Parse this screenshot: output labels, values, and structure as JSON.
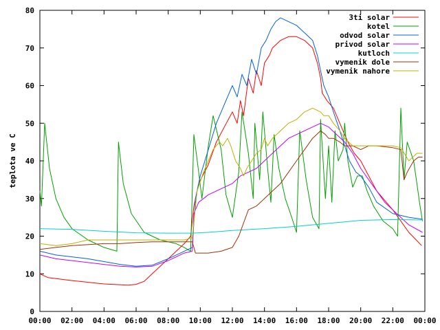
{
  "chart_data": {
    "type": "line",
    "title": "",
    "xlabel": "",
    "ylabel": "teplota ve C",
    "xlim": [
      0,
      24
    ],
    "ylim": [
      0,
      80
    ],
    "x_ticks": [
      "00:00",
      "02:00",
      "04:00",
      "06:00",
      "08:00",
      "10:00",
      "12:00",
      "14:00",
      "16:00",
      "18:00",
      "20:00",
      "22:00",
      "00:00"
    ],
    "y_ticks": [
      "0",
      "10",
      "20",
      "30",
      "40",
      "50",
      "60",
      "70",
      "80"
    ],
    "y_tick_values": [
      0,
      10,
      20,
      30,
      40,
      50,
      60,
      70,
      80
    ],
    "grid": false,
    "legend_position": "top-right",
    "series": [
      {
        "name": "3ti solar",
        "color": "#ff0000",
        "points": [
          [
            0,
            10
          ],
          [
            0.5,
            9
          ],
          [
            2,
            8.2
          ],
          [
            4,
            7.3
          ],
          [
            5.5,
            7
          ],
          [
            6,
            7.2
          ],
          [
            6.5,
            8
          ],
          [
            7,
            10
          ],
          [
            8,
            14
          ],
          [
            9,
            18
          ],
          [
            9.4,
            20
          ],
          [
            9.6,
            28
          ],
          [
            9.9,
            34
          ],
          [
            10.5,
            39
          ],
          [
            11,
            45
          ],
          [
            11.5,
            49
          ],
          [
            12,
            53
          ],
          [
            12.3,
            50
          ],
          [
            12.5,
            56
          ],
          [
            12.7,
            52
          ],
          [
            13,
            62
          ],
          [
            13.3,
            58
          ],
          [
            13.5,
            64
          ],
          [
            13.8,
            60
          ],
          [
            14,
            66
          ],
          [
            14.3,
            68
          ],
          [
            14.5,
            70
          ],
          [
            15,
            72
          ],
          [
            15.5,
            73
          ],
          [
            16,
            73
          ],
          [
            16.5,
            72
          ],
          [
            17,
            70
          ],
          [
            17.3,
            66
          ],
          [
            17.5,
            62
          ],
          [
            17.6,
            58
          ],
          [
            17.9,
            56
          ],
          [
            18.3,
            54
          ],
          [
            18.7,
            50
          ],
          [
            19.2,
            45
          ],
          [
            19.6,
            42
          ],
          [
            20,
            40
          ],
          [
            20.5,
            36
          ],
          [
            21,
            32
          ],
          [
            22,
            27
          ],
          [
            23,
            21
          ],
          [
            23.8,
            17.5
          ]
        ]
      },
      {
        "name": "kotel",
        "color": "#00a000",
        "points": [
          [
            0,
            32
          ],
          [
            0.1,
            28
          ],
          [
            0.3,
            50
          ],
          [
            0.6,
            38
          ],
          [
            1,
            30
          ],
          [
            1.5,
            25
          ],
          [
            2,
            22
          ],
          [
            3,
            19
          ],
          [
            4,
            17
          ],
          [
            4.8,
            16
          ],
          [
            4.9,
            45
          ],
          [
            5.2,
            34
          ],
          [
            5.7,
            26
          ],
          [
            6.5,
            21
          ],
          [
            7.5,
            19
          ],
          [
            8.5,
            18
          ],
          [
            9,
            17
          ],
          [
            9.4,
            16
          ],
          [
            9.6,
            47
          ],
          [
            9.9,
            37
          ],
          [
            10.1,
            30
          ],
          [
            10.5,
            44
          ],
          [
            10.8,
            52
          ],
          [
            11.3,
            43
          ],
          [
            11.6,
            31
          ],
          [
            12,
            25
          ],
          [
            12.4,
            37
          ],
          [
            12.6,
            53
          ],
          [
            13,
            42
          ],
          [
            13.3,
            30
          ],
          [
            13.4,
            50
          ],
          [
            13.7,
            35
          ],
          [
            13.9,
            53
          ],
          [
            14.2,
            38
          ],
          [
            14.4,
            29
          ],
          [
            14.6,
            47
          ],
          [
            14.9,
            38
          ],
          [
            15.3,
            30
          ],
          [
            15.7,
            25
          ],
          [
            16,
            21
          ],
          [
            16.2,
            48
          ],
          [
            16.6,
            35
          ],
          [
            17,
            25
          ],
          [
            17.4,
            22
          ],
          [
            17.5,
            51
          ],
          [
            17.8,
            30
          ],
          [
            18,
            44
          ],
          [
            18.2,
            29
          ],
          [
            18.4,
            48
          ],
          [
            18.6,
            40
          ],
          [
            18.9,
            43
          ],
          [
            19,
            50
          ],
          [
            19.2,
            40
          ],
          [
            19.5,
            33
          ],
          [
            19.8,
            36
          ],
          [
            20.1,
            36
          ],
          [
            20.4,
            32
          ],
          [
            20.8,
            28
          ],
          [
            21.4,
            24
          ],
          [
            22,
            22
          ],
          [
            22.3,
            20
          ],
          [
            22.5,
            54
          ],
          [
            22.7,
            35
          ],
          [
            22.9,
            45
          ],
          [
            23.3,
            40
          ],
          [
            23.7,
            28
          ],
          [
            23.85,
            24
          ]
        ]
      },
      {
        "name": "odvod solar",
        "color": "#0060e0",
        "points": [
          [
            0,
            16
          ],
          [
            1,
            15
          ],
          [
            3,
            14
          ],
          [
            5,
            12.5
          ],
          [
            6,
            12
          ],
          [
            7,
            12.3
          ],
          [
            8,
            14
          ],
          [
            9,
            16
          ],
          [
            9.5,
            17
          ],
          [
            9.7,
            30
          ],
          [
            10,
            36
          ],
          [
            10.5,
            43
          ],
          [
            11,
            50
          ],
          [
            11.5,
            55
          ],
          [
            12,
            60
          ],
          [
            12.3,
            57
          ],
          [
            12.6,
            63
          ],
          [
            12.9,
            60
          ],
          [
            13.2,
            67
          ],
          [
            13.5,
            63
          ],
          [
            13.8,
            70
          ],
          [
            14.1,
            72
          ],
          [
            14.4,
            75
          ],
          [
            14.7,
            77
          ],
          [
            15,
            78
          ],
          [
            15.5,
            77
          ],
          [
            16,
            76
          ],
          [
            16.5,
            74
          ],
          [
            17,
            72
          ],
          [
            17.3,
            68
          ],
          [
            17.5,
            64
          ],
          [
            17.7,
            60
          ],
          [
            18,
            57
          ],
          [
            18.3,
            53
          ],
          [
            18.7,
            48
          ],
          [
            19,
            44
          ],
          [
            19.3,
            40
          ],
          [
            19.7,
            37
          ],
          [
            20,
            36
          ],
          [
            20.5,
            33
          ],
          [
            21,
            29
          ],
          [
            22,
            26
          ],
          [
            23,
            25
          ],
          [
            23.85,
            24.5
          ]
        ]
      },
      {
        "name": "privod solar",
        "color": "#c000ff",
        "points": [
          [
            0,
            15
          ],
          [
            1,
            14
          ],
          [
            2,
            13.5
          ],
          [
            4,
            12.5
          ],
          [
            5,
            12
          ],
          [
            6,
            11.8
          ],
          [
            7,
            12
          ],
          [
            8,
            13.5
          ],
          [
            9,
            15.5
          ],
          [
            9.5,
            16
          ],
          [
            9.6,
            26
          ],
          [
            9.9,
            29
          ],
          [
            10.2,
            30
          ],
          [
            10.5,
            31
          ],
          [
            11,
            32
          ],
          [
            11.5,
            33
          ],
          [
            12,
            34
          ],
          [
            12.5,
            36
          ],
          [
            13,
            37
          ],
          [
            13.5,
            38
          ],
          [
            14,
            40
          ],
          [
            14.5,
            42
          ],
          [
            15,
            44
          ],
          [
            15.5,
            46
          ],
          [
            16,
            47
          ],
          [
            16.5,
            48
          ],
          [
            17,
            49
          ],
          [
            17.5,
            50
          ],
          [
            18,
            49
          ],
          [
            18.5,
            47
          ],
          [
            19,
            45
          ],
          [
            19.5,
            42
          ],
          [
            20,
            38
          ],
          [
            20.5,
            35
          ],
          [
            21,
            32
          ],
          [
            21.5,
            29
          ],
          [
            22,
            27
          ],
          [
            23,
            23
          ],
          [
            23.85,
            21
          ]
        ]
      },
      {
        "name": "kutloch",
        "color": "#00d0d0",
        "points": [
          [
            0,
            22
          ],
          [
            2,
            21.8
          ],
          [
            4,
            21.3
          ],
          [
            6,
            20.9
          ],
          [
            8,
            20.8
          ],
          [
            9.5,
            20.8
          ],
          [
            10.5,
            21
          ],
          [
            12,
            21.5
          ],
          [
            14,
            22
          ],
          [
            16,
            22.6
          ],
          [
            18,
            23.4
          ],
          [
            20,
            24.2
          ],
          [
            22,
            24.4
          ],
          [
            23.85,
            24.3
          ]
        ]
      },
      {
        "name": "vymenik dole",
        "color": "#a03000",
        "points": [
          [
            0,
            16.5
          ],
          [
            1,
            17
          ],
          [
            2,
            17.5
          ],
          [
            4,
            18
          ],
          [
            5,
            18
          ],
          [
            6,
            18.3
          ],
          [
            7,
            18.5
          ],
          [
            8,
            18.5
          ],
          [
            9,
            18.5
          ],
          [
            9.5,
            18.5
          ],
          [
            9.7,
            15.5
          ],
          [
            10.5,
            15.5
          ],
          [
            11.3,
            16
          ],
          [
            12,
            17
          ],
          [
            12.4,
            20
          ],
          [
            13,
            27
          ],
          [
            13.5,
            28
          ],
          [
            14,
            30
          ],
          [
            15,
            34
          ],
          [
            15.5,
            37
          ],
          [
            16,
            40
          ],
          [
            16.5,
            43
          ],
          [
            17,
            46
          ],
          [
            17.5,
            48
          ],
          [
            17.8,
            47
          ],
          [
            18,
            46
          ],
          [
            18.3,
            46
          ],
          [
            18.7,
            45
          ],
          [
            19,
            44
          ],
          [
            19.5,
            44
          ],
          [
            20,
            43
          ],
          [
            20.5,
            44
          ],
          [
            21,
            44
          ],
          [
            22,
            43.5
          ],
          [
            22.5,
            43
          ],
          [
            22.7,
            35
          ],
          [
            22.9,
            37
          ],
          [
            23.3,
            40
          ],
          [
            23.6,
            41
          ],
          [
            23.85,
            41
          ]
        ]
      },
      {
        "name": "vymenik nahore",
        "color": "#c0b000",
        "points": [
          [
            0,
            18
          ],
          [
            1,
            17.5
          ],
          [
            2,
            18
          ],
          [
            3,
            19
          ],
          [
            4,
            19
          ],
          [
            5,
            19
          ],
          [
            6,
            19
          ],
          [
            7,
            19
          ],
          [
            8,
            19
          ],
          [
            9,
            19
          ],
          [
            9.5,
            19.5
          ],
          [
            9.8,
            32
          ],
          [
            10.2,
            37
          ],
          [
            10.5,
            40
          ],
          [
            10.8,
            43
          ],
          [
            11.2,
            45
          ],
          [
            11.4,
            44
          ],
          [
            11.7,
            46
          ],
          [
            11.9,
            44
          ],
          [
            12.2,
            40
          ],
          [
            12.5,
            38
          ],
          [
            12.7,
            36
          ],
          [
            12.9,
            38
          ],
          [
            13.2,
            40
          ],
          [
            13.5,
            42
          ],
          [
            13.8,
            43
          ],
          [
            14,
            46
          ],
          [
            14.2,
            44
          ],
          [
            14.5,
            46
          ],
          [
            15,
            48
          ],
          [
            15.5,
            50
          ],
          [
            16,
            51
          ],
          [
            16.5,
            53
          ],
          [
            17,
            54
          ],
          [
            17.5,
            53
          ],
          [
            17.7,
            52
          ],
          [
            18,
            52
          ],
          [
            18.3,
            50
          ],
          [
            18.7,
            48
          ],
          [
            19,
            46
          ],
          [
            19.5,
            44
          ],
          [
            20,
            44
          ],
          [
            21,
            44
          ],
          [
            22,
            44
          ],
          [
            22.5,
            43.5
          ],
          [
            23,
            40
          ],
          [
            23.5,
            42
          ],
          [
            23.85,
            42
          ]
        ]
      }
    ]
  }
}
